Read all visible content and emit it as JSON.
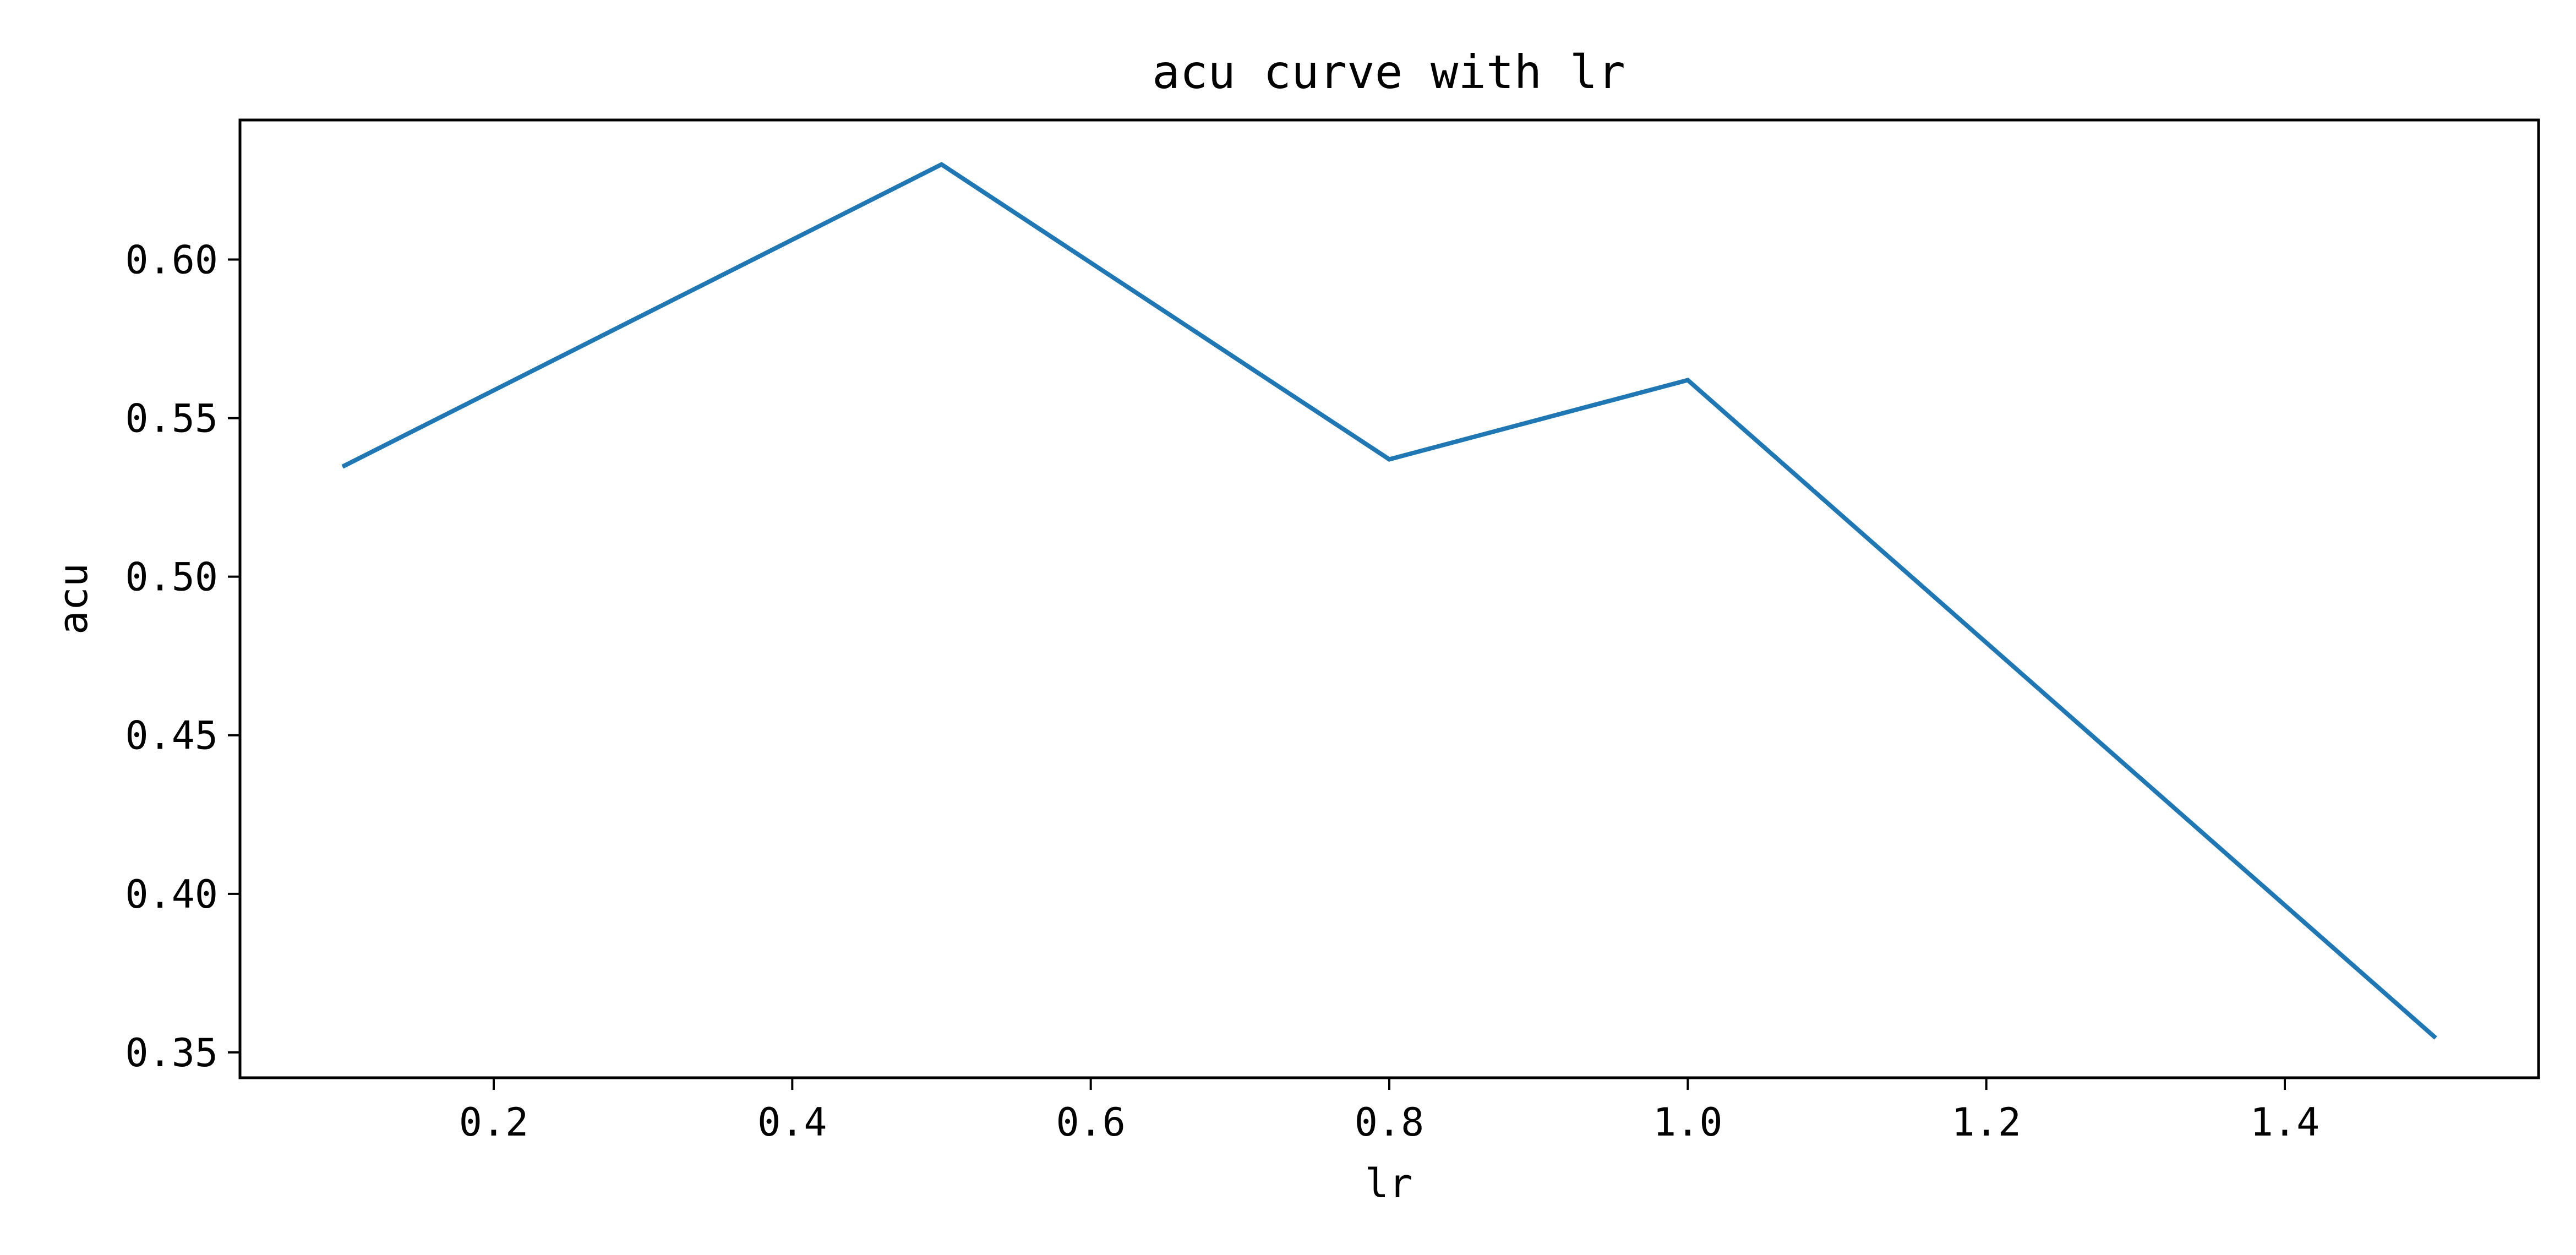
{
  "chart_data": {
    "type": "line",
    "title": "acu curve with lr",
    "xlabel": "lr",
    "ylabel": "acu",
    "xlim": [
      0.03,
      1.57
    ],
    "ylim": [
      0.342,
      0.644
    ],
    "xticks": [
      "0.2",
      "0.4",
      "0.6",
      "0.8",
      "1.0",
      "1.2",
      "1.4"
    ],
    "yticks": [
      "0.35",
      "0.40",
      "0.45",
      "0.50",
      "0.55",
      "0.60"
    ],
    "grid": false,
    "series": [
      {
        "x": [
          0.1,
          0.5,
          0.8,
          1.0,
          1.5
        ],
        "y": [
          0.535,
          0.63,
          0.537,
          0.562,
          0.355
        ],
        "color": "#1f77b4"
      }
    ]
  }
}
